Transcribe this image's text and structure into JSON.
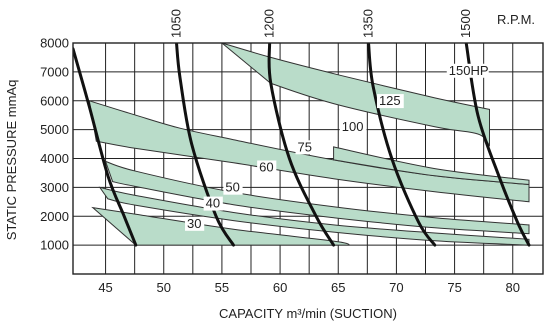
{
  "chart_data": {
    "type": "line",
    "xlabel": "CAPACITY m³/min (SUCTION)",
    "ylabel": "STATIC PRESSURE mmAq",
    "xlim": [
      42.2,
      82.6
    ],
    "ylim": [
      0,
      8000
    ],
    "x_ticks": [
      "45",
      "50",
      "55",
      "60",
      "65",
      "70",
      "75",
      "80"
    ],
    "y_ticks": [
      "1000",
      "2000",
      "3000",
      "4000",
      "5000",
      "6000",
      "7000",
      "8000"
    ],
    "grid": true,
    "colors": {
      "band_fill": "#b9dcc9",
      "line": "#111111"
    },
    "rpm_axis_label": "R.P.M.",
    "rpm_curves": [
      {
        "label": "",
        "points": [
          [
            42.2,
            7800
          ],
          [
            43.6,
            5800
          ],
          [
            45.2,
            3400
          ],
          [
            46.6,
            2000
          ],
          [
            47.6,
            1000
          ]
        ]
      },
      {
        "label": "1050",
        "points": [
          [
            51.1,
            8000
          ],
          [
            51.4,
            6800
          ],
          [
            52.4,
            4500
          ],
          [
            54.5,
            2000
          ],
          [
            56.0,
            1000
          ]
        ]
      },
      {
        "label": "1200",
        "points": [
          [
            59.1,
            8000
          ],
          [
            59.2,
            6600
          ],
          [
            60.8,
            4000
          ],
          [
            63.1,
            2000
          ],
          [
            64.6,
            1000
          ]
        ]
      },
      {
        "label": "1350",
        "points": [
          [
            67.6,
            8000
          ],
          [
            68.0,
            6500
          ],
          [
            69.6,
            4000
          ],
          [
            71.9,
            1800
          ],
          [
            73.3,
            1000
          ]
        ]
      },
      {
        "label": "1500",
        "points": [
          [
            76.0,
            8000
          ],
          [
            77.0,
            5500
          ],
          [
            78.8,
            3400
          ],
          [
            80.4,
            1800
          ],
          [
            81.4,
            1000
          ]
        ]
      }
    ],
    "bands": [
      {
        "label": "30",
        "upper": [
          [
            43.9,
            2300
          ],
          [
            47.6,
            2070
          ],
          [
            56.0,
            1550
          ],
          [
            64.6,
            1140
          ],
          [
            66.0,
            1000
          ]
        ],
        "lower": [
          [
            47.6,
            1000
          ],
          [
            56.0,
            1000
          ],
          [
            66.0,
            1000
          ]
        ]
      },
      {
        "label": "40",
        "upper": [
          [
            44.5,
            3000
          ],
          [
            47.6,
            2720
          ],
          [
            56.0,
            2130
          ],
          [
            64.6,
            1700
          ],
          [
            73.3,
            1420
          ],
          [
            81.4,
            1200
          ]
        ],
        "lower": [
          [
            45.2,
            2600
          ],
          [
            47.6,
            2380
          ],
          [
            56.0,
            1850
          ],
          [
            64.6,
            1450
          ],
          [
            73.3,
            1150
          ],
          [
            81.4,
            1000
          ]
        ]
      },
      {
        "label": "50",
        "upper": [
          [
            45.0,
            3900
          ],
          [
            47.6,
            3560
          ],
          [
            56.0,
            2830
          ],
          [
            64.6,
            2330
          ],
          [
            73.3,
            1950
          ],
          [
            81.4,
            1700
          ]
        ],
        "lower": [
          [
            45.6,
            3200
          ],
          [
            47.6,
            3030
          ],
          [
            56.0,
            2400
          ],
          [
            64.6,
            1950
          ],
          [
            73.3,
            1600
          ],
          [
            81.4,
            1400
          ]
        ]
      },
      {
        "label": "60",
        "upper": [
          [
            43.6,
            6000
          ],
          [
            47.6,
            5500
          ],
          [
            51.4,
            5050
          ],
          [
            56.0,
            4650
          ],
          [
            64.6,
            3950
          ],
          [
            73.3,
            3400
          ],
          [
            81.4,
            3100
          ]
        ],
        "lower": [
          [
            44.2,
            4600
          ],
          [
            47.6,
            4350
          ],
          [
            56.0,
            3850
          ],
          [
            64.6,
            3300
          ],
          [
            73.3,
            2850
          ],
          [
            81.4,
            2500
          ]
        ]
      },
      {
        "label": "75",
        "upper": [
          [
            64.6,
            4400
          ],
          [
            73.3,
            3650
          ],
          [
            81.4,
            3250
          ]
        ],
        "lower": [
          [
            64.6,
            3950
          ],
          [
            73.3,
            3400
          ],
          [
            81.4,
            3100
          ]
        ]
      },
      {
        "label": "100",
        "upper": [
          [
            55.0,
            8000
          ],
          [
            59.2,
            7500
          ],
          [
            65.0,
            6900
          ],
          [
            73.3,
            6100
          ],
          [
            78.0,
            5700
          ]
        ],
        "lower": [
          [
            59.2,
            6600
          ],
          [
            64.6,
            5900
          ],
          [
            73.3,
            5100
          ],
          [
            77.0,
            4850
          ],
          [
            78.0,
            4450
          ]
        ]
      }
    ],
    "band_labels": [
      {
        "text": "30",
        "x": 52.0,
        "y": 1600
      },
      {
        "text": "40",
        "x": 53.6,
        "y": 2300
      },
      {
        "text": "50",
        "x": 55.3,
        "y": 2850
      },
      {
        "text": "60",
        "x": 58.2,
        "y": 3550
      },
      {
        "text": "75",
        "x": 61.5,
        "y": 4250
      },
      {
        "text": "100",
        "x": 65.3,
        "y": 4950
      },
      {
        "text": "125",
        "x": 68.5,
        "y": 5850
      },
      {
        "text": "150HP",
        "x": 74.5,
        "y": 6900
      }
    ]
  }
}
